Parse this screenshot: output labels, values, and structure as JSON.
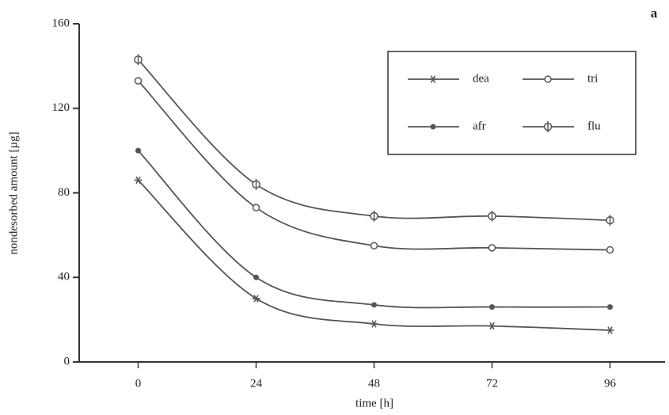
{
  "chart_data": {
    "type": "line",
    "panel_label": "a",
    "x_label": "time [h]",
    "y_label": "nondesorbed amount [µg]",
    "x": [
      0,
      24,
      48,
      72,
      96
    ],
    "series": [
      {
        "name": "dea",
        "color": "#555555",
        "marker": "star",
        "values": [
          86,
          30,
          18,
          17,
          15
        ]
      },
      {
        "name": "tri",
        "color": "#555555",
        "marker": "circle",
        "values": [
          133,
          73,
          55,
          54,
          53
        ]
      },
      {
        "name": "afr",
        "color": "#555555",
        "marker": "dot",
        "values": [
          100,
          40,
          27,
          26,
          26
        ]
      },
      {
        "name": "flu",
        "color": "#555555",
        "marker": "phi",
        "values": [
          143,
          84,
          69,
          69,
          67
        ]
      }
    ],
    "xlim": [
      -12,
      108
    ],
    "xticks": [
      0,
      24,
      48,
      72,
      96
    ],
    "ylim": [
      0,
      160
    ],
    "yticks": [
      0,
      40,
      80,
      120,
      160
    ],
    "smooth": true
  }
}
